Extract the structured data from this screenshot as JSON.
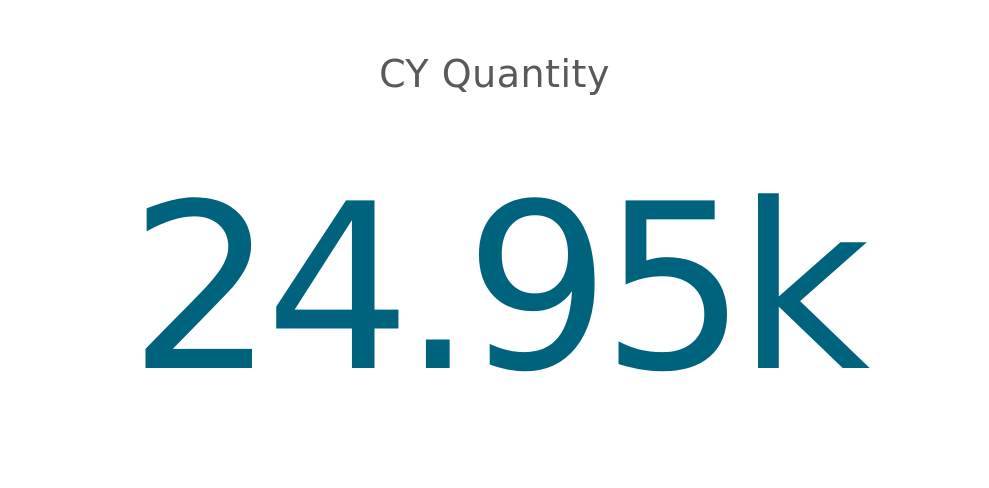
{
  "kpi": {
    "title": "CY Quantity",
    "value": "24.95k"
  },
  "colors": {
    "title": "#595959",
    "value": "#00637d",
    "background": "#ffffff"
  }
}
